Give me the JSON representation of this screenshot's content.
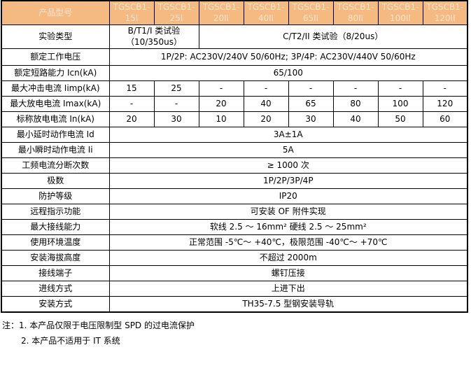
{
  "table": {
    "header": {
      "label": "产品型号",
      "models": [
        "TGSCB1-15I",
        "TGSCB1-25I",
        "TGSCB1-20II",
        "TGSCB1-40II",
        "TGSCB1-65II",
        "TGSCB1-80II",
        "TGSCB1-100II",
        "TGSCB1-120II"
      ]
    },
    "rows": [
      {
        "label": "实验类型",
        "cells": [
          "B/T1/I 类试验（10/350us）",
          "C/T2/II 类试验（8/20us）"
        ]
      },
      {
        "label": "额定工作电压",
        "cells": [
          "1P/2P: AC230V/240V 50/60Hz; 3P/4P: AC230V/440V 50/60Hz"
        ]
      },
      {
        "label": "额定短路能力 Icn(kA)",
        "cells": [
          "65/100"
        ]
      },
      {
        "label": "最大冲击电流 Iimp(kA)",
        "cells": [
          "15",
          "25",
          "-",
          "-",
          "-",
          "-",
          "-",
          "-"
        ]
      },
      {
        "label": "最大放电电流 Imax(kA)",
        "cells": [
          "-",
          "-",
          "20",
          "40",
          "65",
          "80",
          "100",
          "120"
        ]
      },
      {
        "label": "标称放电电流 In(kA)",
        "cells": [
          "20",
          "30",
          "10",
          "20",
          "30",
          "40",
          "50",
          "60"
        ]
      },
      {
        "label": "最小延时动作电流 Id",
        "cells": [
          "3A±1A"
        ]
      },
      {
        "label": "最小瞬时动作电流 Ii",
        "cells": [
          "5A"
        ]
      },
      {
        "label": "工频电流分断次数",
        "cells": [
          "≥ 1000 次"
        ]
      },
      {
        "label": "极数",
        "cells": [
          "1P/2P/3P/4P"
        ]
      },
      {
        "label": "防护等级",
        "cells": [
          "IP20"
        ]
      },
      {
        "label": "远程指示功能",
        "cells": [
          "可安装 OF 附件实现"
        ]
      },
      {
        "label": "最大接线能力",
        "cells": [
          "软线 2.5 ～ 16mm² 硬线 2.5 ～ 25mm²"
        ]
      },
      {
        "label": "使用环境温度",
        "cells": [
          "正常范围 -5℃～ +40℃，极限范围 -40℃～ +70℃"
        ]
      },
      {
        "label": "安装海拔高度",
        "cells": [
          "不超过 2000m"
        ]
      },
      {
        "label": "接线端子",
        "cells": [
          "螺钉压接"
        ]
      },
      {
        "label": "进线方式",
        "cells": [
          "上进下出"
        ]
      },
      {
        "label": "安装方式",
        "cells": [
          "TH35-7.5 型钢安装导轨"
        ]
      }
    ]
  },
  "notes": {
    "line1": "注：1. 本产品仅限于电压限制型 SPD 的过电流保护",
    "line2": "2. 本产品不适用于 IT 系统"
  },
  "colors": {
    "header_bg": "#F5BA81",
    "header_text": "#FCE4CF",
    "border": "#000000",
    "page_bg": "#FFFFFF"
  }
}
